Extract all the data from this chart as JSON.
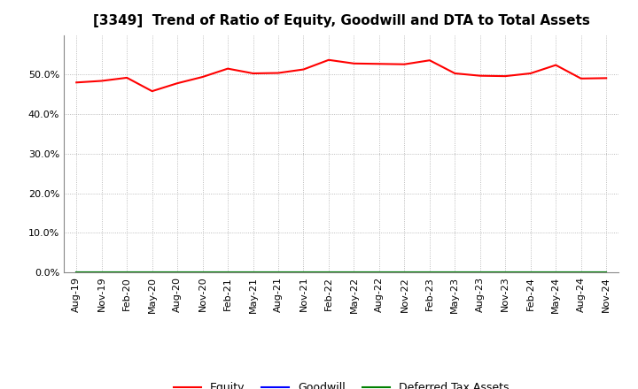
{
  "title": "[3349]  Trend of Ratio of Equity, Goodwill and DTA to Total Assets",
  "x_labels": [
    "Aug-19",
    "Nov-19",
    "Feb-20",
    "May-20",
    "Aug-20",
    "Nov-20",
    "Feb-21",
    "May-21",
    "Aug-21",
    "Nov-21",
    "Feb-22",
    "May-22",
    "Aug-22",
    "Nov-22",
    "Feb-23",
    "May-23",
    "Aug-23",
    "Nov-23",
    "Feb-24",
    "May-24",
    "Aug-24",
    "Nov-24"
  ],
  "equity": [
    0.48,
    0.484,
    0.492,
    0.458,
    0.478,
    0.494,
    0.515,
    0.503,
    0.504,
    0.513,
    0.537,
    0.528,
    0.527,
    0.526,
    0.536,
    0.503,
    0.497,
    0.496,
    0.503,
    0.524,
    0.49,
    0.491
  ],
  "goodwill": [
    0.0,
    0.0,
    0.0,
    0.0,
    0.0,
    0.0,
    0.0,
    0.0,
    0.0,
    0.0,
    0.0,
    0.0,
    0.0,
    0.0,
    0.0,
    0.0,
    0.0,
    0.0,
    0.0,
    0.0,
    0.0,
    0.0
  ],
  "dta": [
    0.0,
    0.0,
    0.0,
    0.0,
    0.0,
    0.0,
    0.0,
    0.0,
    0.0,
    0.0,
    0.0,
    0.0,
    0.0,
    0.0,
    0.0,
    0.0,
    0.0,
    0.0,
    0.0,
    0.0,
    0.0,
    0.0
  ],
  "equity_color": "#FF0000",
  "goodwill_color": "#0000FF",
  "dta_color": "#008000",
  "ylim": [
    0.0,
    0.6
  ],
  "yticks": [
    0.0,
    0.1,
    0.2,
    0.3,
    0.4,
    0.5
  ],
  "background_color": "#FFFFFF",
  "plot_bg_color": "#FFFFFF",
  "grid_color": "#AAAAAA",
  "title_fontsize": 11,
  "legend_labels": [
    "Equity",
    "Goodwill",
    "Deferred Tax Assets"
  ]
}
